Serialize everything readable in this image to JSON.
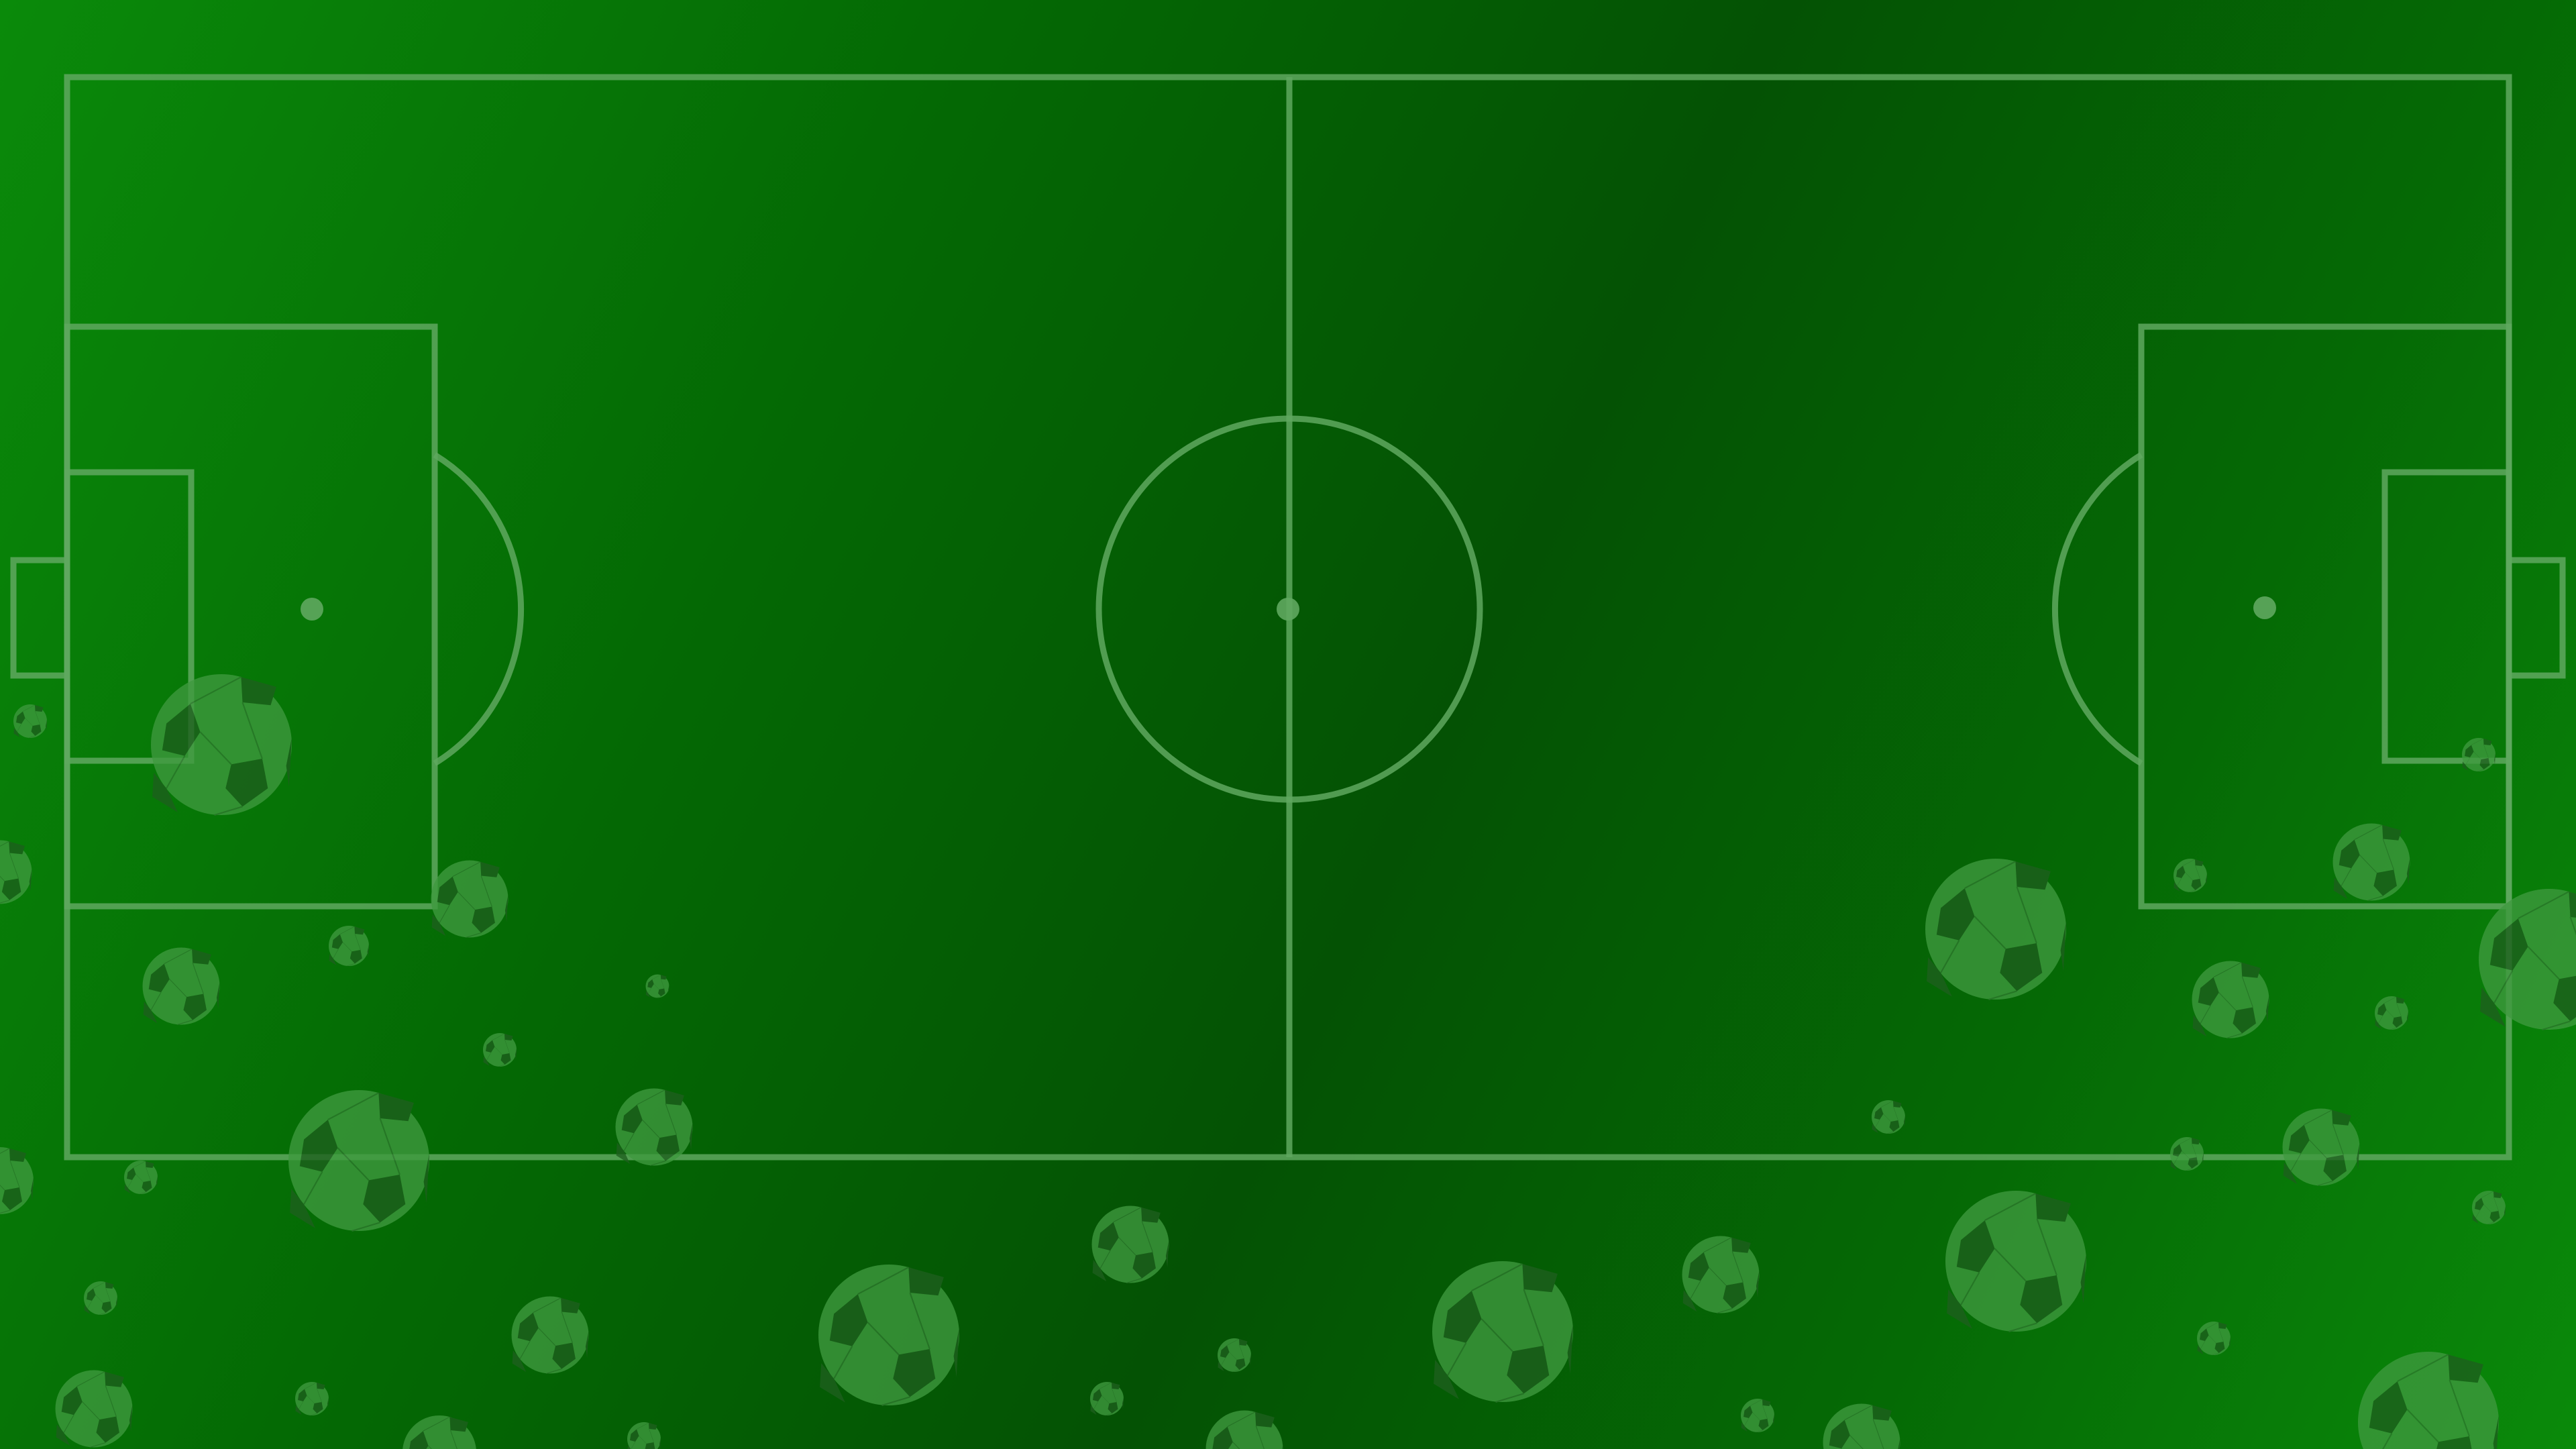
{
  "colors": {
    "grass_light": "#0a8a0a",
    "grass_dark": "#045204",
    "line": "#5fa85f",
    "ball_light": "#3f9a3f",
    "ball_patch": "#1e5f1e"
  },
  "icons": [
    "soccer-field",
    "soccer-ball-icon"
  ]
}
